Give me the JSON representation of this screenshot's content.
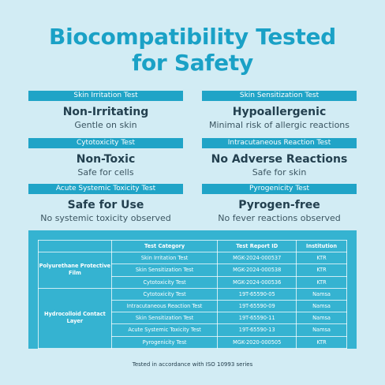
{
  "title_line1": "Biocompatibility Tested",
  "title_line2": "for Safety",
  "cards": [
    {
      "tag": "Skin Irritation Test",
      "head": "Non-Irritating",
      "sub": "Gentle on skin"
    },
    {
      "tag": "Skin Sensitization Test",
      "head": "Hypoallergenic",
      "sub": "Minimal risk of allergic reactions"
    },
    {
      "tag": "Cytotoxicity Test",
      "head": "Non-Toxic",
      "sub": "Safe for cells"
    },
    {
      "tag": "Intracutaneous Reaction Test",
      "head": "No Adverse Reactions",
      "sub": "Safe for skin"
    },
    {
      "tag": "Acute Systemic Toxicity Test",
      "head": "Safe for Use",
      "sub": "No systemic toxicity observed"
    },
    {
      "tag": "Pyrogenicity Test",
      "head": "Pyrogen-free",
      "sub": "No fever reactions observed"
    }
  ],
  "table": {
    "headers": [
      "",
      "Test Category",
      "Test Report ID",
      "Institution"
    ],
    "groups": [
      {
        "name": "Polyurethane Protective Film",
        "rows": [
          [
            "Skin Irritation Test",
            "MGK-2024-000537",
            "KTR"
          ],
          [
            "Skin Sensitization Test",
            "MGK-2024-000538",
            "KTR"
          ],
          [
            "Cytotoxicity Test",
            "MGK-2024-000536",
            "KTR"
          ]
        ]
      },
      {
        "name": "Hydrocolloid Contact Layer",
        "rows": [
          [
            "Cytotoxicity Test",
            "19T-65590-05",
            "Namsa"
          ],
          [
            "Intracutaneous Reaction Test",
            "19T-65590-09",
            "Namsa"
          ],
          [
            "Skin Sensitization Test",
            "19T-65590-11",
            "Namsa"
          ],
          [
            "Acute Systemic Toxicity Test",
            "19T-65590-13",
            "Namsa"
          ],
          [
            "Pyrogenicity Test",
            "MGK-2020-000505",
            "KTR"
          ]
        ]
      }
    ]
  },
  "footnote": "Tested in accordance with ISO 10993 series"
}
